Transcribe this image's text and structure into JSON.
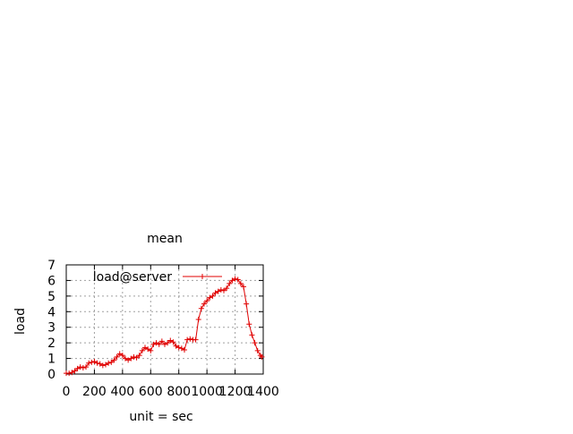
{
  "chart_data": {
    "type": "line",
    "title": "mean",
    "xlabel": "unit = sec",
    "ylabel": "load",
    "xlim": [
      0,
      1400
    ],
    "ylim": [
      0,
      7
    ],
    "xticks": [
      0,
      200,
      400,
      600,
      800,
      1000,
      1200,
      1400
    ],
    "yticks": [
      0,
      1,
      2,
      3,
      4,
      5,
      6,
      7
    ],
    "grid": true,
    "legend_position": "top-left",
    "series": [
      {
        "name": "load@server",
        "color": "#e00000",
        "marker": "plus",
        "x": [
          0,
          20,
          40,
          60,
          80,
          100,
          120,
          140,
          160,
          180,
          200,
          220,
          240,
          260,
          280,
          300,
          320,
          340,
          360,
          380,
          400,
          420,
          440,
          460,
          480,
          500,
          520,
          540,
          560,
          580,
          600,
          620,
          640,
          660,
          680,
          700,
          720,
          740,
          760,
          780,
          800,
          820,
          840,
          860,
          880,
          900,
          920,
          940,
          960,
          980,
          1000,
          1020,
          1040,
          1060,
          1080,
          1100,
          1120,
          1140,
          1160,
          1180,
          1200,
          1220,
          1240,
          1260,
          1280,
          1300,
          1320,
          1340,
          1360,
          1380,
          1390
        ],
        "y": [
          0.05,
          0.05,
          0.1,
          0.2,
          0.35,
          0.45,
          0.4,
          0.45,
          0.7,
          0.75,
          0.8,
          0.7,
          0.65,
          0.55,
          0.6,
          0.7,
          0.75,
          0.9,
          1.1,
          1.3,
          1.2,
          1.0,
          0.9,
          1.0,
          1.1,
          1.05,
          1.2,
          1.5,
          1.7,
          1.6,
          1.5,
          1.9,
          2.0,
          1.9,
          2.1,
          1.9,
          2.0,
          2.15,
          2.05,
          1.8,
          1.7,
          1.65,
          1.55,
          2.2,
          2.25,
          2.2,
          2.2,
          3.5,
          4.2,
          4.5,
          4.7,
          4.9,
          5.0,
          5.2,
          5.3,
          5.4,
          5.35,
          5.5,
          5.8,
          6.0,
          6.1,
          6.05,
          5.8,
          5.6,
          4.5,
          3.2,
          2.5,
          2.0,
          1.5,
          1.2,
          1.1
        ]
      }
    ]
  }
}
